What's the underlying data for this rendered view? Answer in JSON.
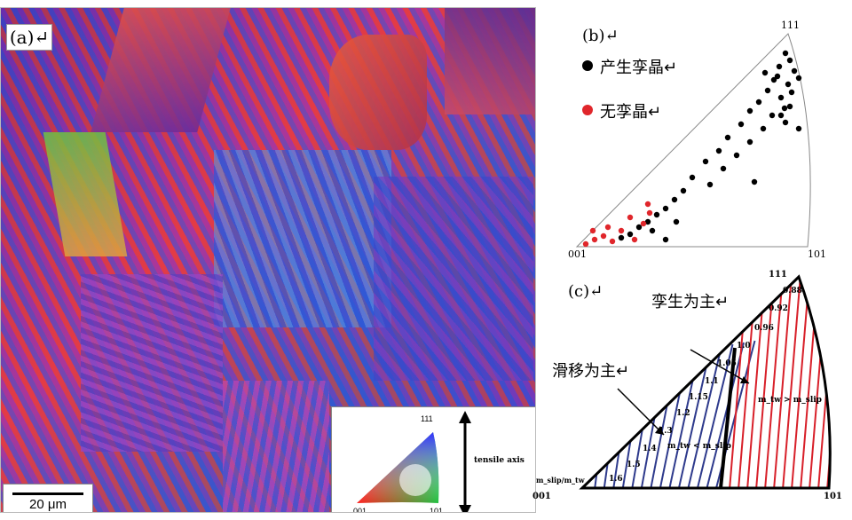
{
  "panel_a": {
    "label": "(a)↵",
    "scale_bar": "20 μm",
    "legend": {
      "corner_top": "111",
      "corner_left": "001",
      "corner_right": "101",
      "axis_label": "tensile axis"
    }
  },
  "panel_b": {
    "label": "(b)↵",
    "corner_top": "111",
    "corner_left": "001",
    "corner_right": "101",
    "legend": [
      {
        "text": "产生孪晶↵",
        "color": "#000000"
      },
      {
        "text": "无孪晶↵",
        "color": "#e0262b"
      }
    ]
  },
  "panel_c": {
    "label": "(c)↵",
    "corner_top": "111",
    "corner_left": "001",
    "corner_right": "101",
    "annotation_twin": "孪生为主↵",
    "annotation_slip": "滑移为主↵",
    "axis_ratio_label": "m_slip/m_tw",
    "region_red_label": "m_tw > m_slip",
    "region_blue_label": "m_tw < m_slip",
    "contour_values": [
      "0.88",
      "0.92",
      "0.96",
      "1.0",
      "1.05",
      "1.1",
      "1.15",
      "1.2",
      "1.3",
      "1.4",
      "1.5",
      "1.6"
    ],
    "colors": {
      "twin": "#d8202a",
      "slip": "#2e3a8c",
      "boundary": "#000000"
    }
  }
}
